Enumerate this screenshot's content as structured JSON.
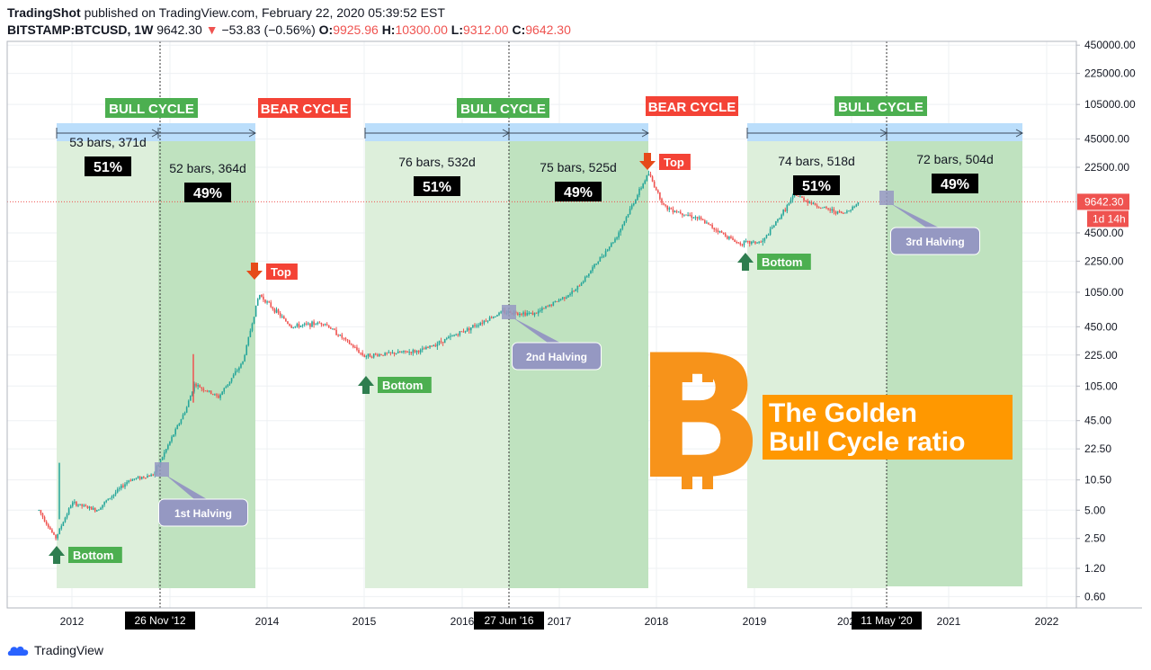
{
  "header": {
    "author": "TradingShot",
    "published_text": "published on TradingView.com, February 22, 2020 05:39:52 EST",
    "symbol": "BITSTAMP:BTCUSD, 1W",
    "last": "9642.30",
    "change": "−53.83 (−0.56%)",
    "o_label": "O:",
    "o": "9925.96",
    "h_label": "H:",
    "h": "10300.00",
    "l_label": "L:",
    "l": "9312.00",
    "c_label": "C:",
    "c": "9642.30"
  },
  "footer": {
    "brand": "TradingView"
  },
  "colors": {
    "bull_tag": "#4caf50",
    "bear_tag": "#f44336",
    "zone": "#c8e6c9",
    "range_bar": "#bbdefb",
    "up": "#26a69a",
    "down": "#ef5350",
    "halving": "#9598c2",
    "bitcoin": "#f7931a",
    "callout": "#ff9800",
    "price_line": "#ef5350"
  },
  "chart_data": {
    "type": "candlestick",
    "title": "The Golden Bull Cycle ratio",
    "y_scale": "log",
    "y_ticks": [
      "450000.00",
      "225000.00",
      "105000.00",
      "45000.00",
      "22500.00",
      "4500.00",
      "2250.00",
      "1050.00",
      "450.00",
      "225.00",
      "105.00",
      "45.00",
      "22.50",
      "10.50",
      "5.00",
      "2.50",
      "1.20",
      "0.60"
    ],
    "x_ticks": [
      "2012",
      "2014",
      "2015",
      "2016",
      "2017",
      "2018",
      "2019",
      "2021",
      "2022"
    ],
    "x_ticks_partial": [
      "202"
    ],
    "x_markers": [
      "26 Nov '12",
      "27 Jun '16",
      "11 May '20"
    ],
    "current_price": "9642.30",
    "countdown": "1d 14h",
    "cycles": [
      {
        "label": "BULL CYCLE",
        "kind": "bull"
      },
      {
        "label": "BEAR CYCLE",
        "kind": "bear"
      },
      {
        "label": "BULL CYCLE",
        "kind": "bull"
      },
      {
        "label": "BEAR CYCLE",
        "kind": "bear"
      },
      {
        "label": "BULL CYCLE",
        "kind": "bull"
      }
    ],
    "segments": [
      {
        "bars": "53 bars, 371d",
        "pct": "51%"
      },
      {
        "bars": "52 bars, 364d",
        "pct": "49%"
      },
      {
        "bars": "76 bars, 532d",
        "pct": "51%"
      },
      {
        "bars": "75 bars, 525d",
        "pct": "49%"
      },
      {
        "bars": "74 bars, 518d",
        "pct": "51%"
      },
      {
        "bars": "72 bars, 504d",
        "pct": "49%"
      }
    ],
    "halvings": [
      "1st Halving",
      "2nd Halving",
      "3rd Halving"
    ],
    "annotations": [
      {
        "label": "Bottom",
        "kind": "bottom"
      },
      {
        "label": "Top",
        "kind": "top"
      },
      {
        "label": "Bottom",
        "kind": "bottom"
      },
      {
        "label": "Top",
        "kind": "top"
      },
      {
        "label": "Bottom",
        "kind": "bottom"
      }
    ],
    "price_path": [
      [
        "2011-09",
        5
      ],
      [
        "2011-11",
        2.5
      ],
      [
        "2012-01",
        6
      ],
      [
        "2012-04",
        5
      ],
      [
        "2012-08",
        10.5
      ],
      [
        "2012-11",
        12
      ],
      [
        "2013-03",
        60
      ],
      [
        "2013-04",
        110
      ],
      [
        "2013-07",
        80
      ],
      [
        "2013-10",
        190
      ],
      [
        "2013-12",
        1000
      ],
      [
        "2014-04",
        450
      ],
      [
        "2014-08",
        500
      ],
      [
        "2015-01",
        220
      ],
      [
        "2015-08",
        250
      ],
      [
        "2016-01",
        400
      ],
      [
        "2016-06",
        650
      ],
      [
        "2016-10",
        620
      ],
      [
        "2017-03",
        1100
      ],
      [
        "2017-08",
        4000
      ],
      [
        "2017-12",
        19500
      ],
      [
        "2018-02",
        8500
      ],
      [
        "2018-06",
        6500
      ],
      [
        "2018-11",
        3500
      ],
      [
        "2019-02",
        3600
      ],
      [
        "2019-06",
        11500
      ],
      [
        "2019-09",
        8500
      ],
      [
        "2019-12",
        7200
      ],
      [
        "2020-02",
        9642.3
      ]
    ]
  }
}
